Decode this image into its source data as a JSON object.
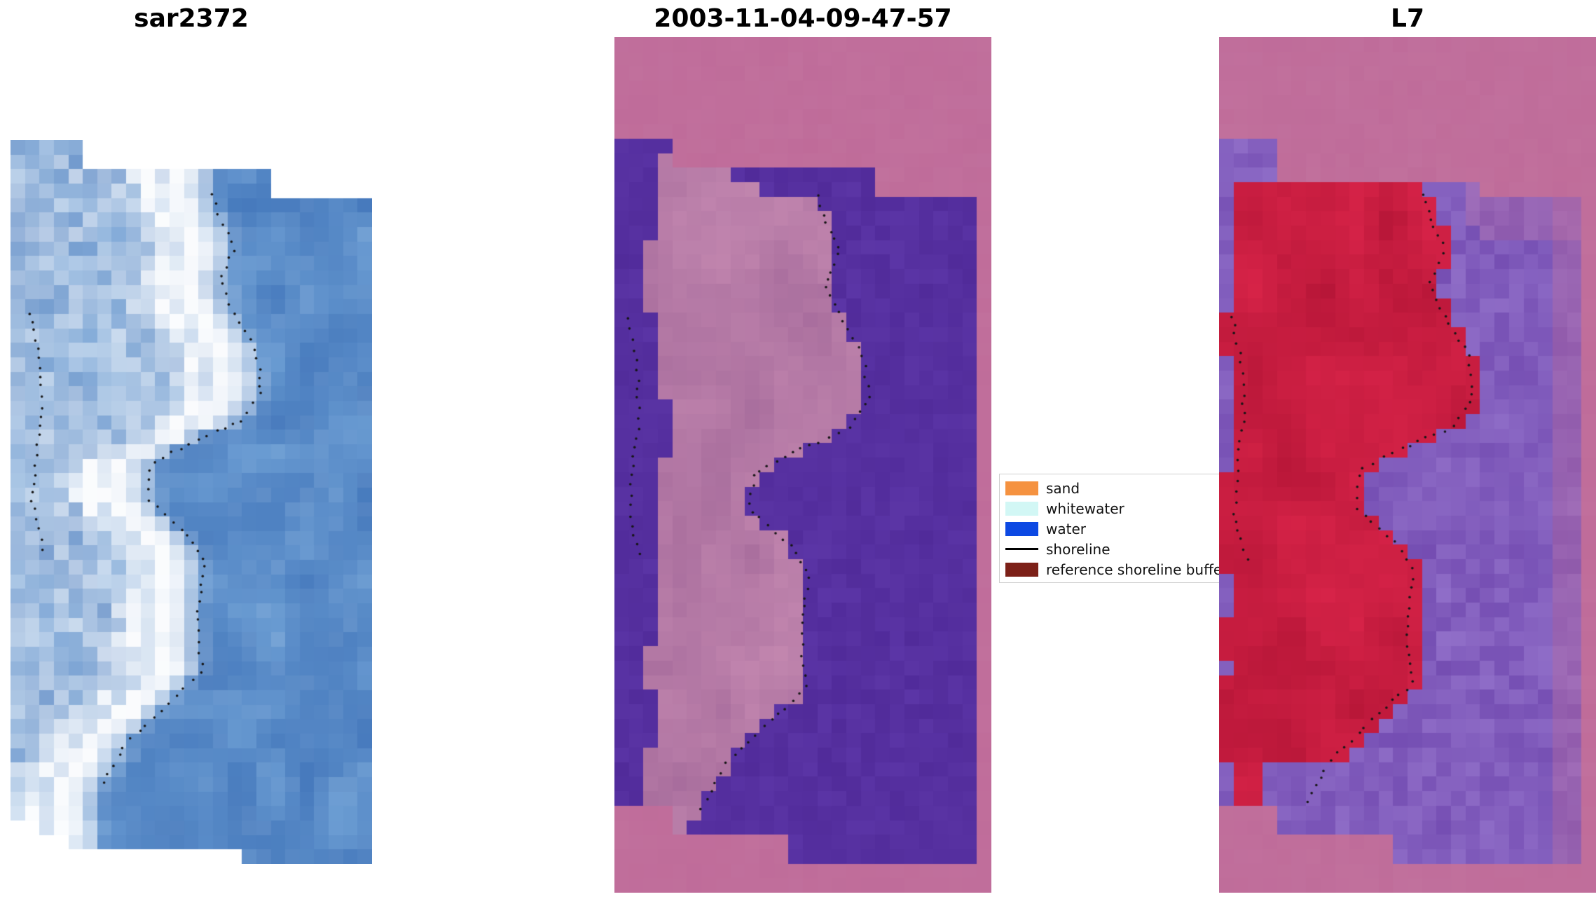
{
  "figure": {
    "background": "#ffffff"
  },
  "panels": [
    {
      "title": "sar2372",
      "kind": "sar",
      "seed": 101,
      "palette": {
        "water_dark": "#3b6fb6",
        "water_light": "#74a5d8",
        "bright": "#ffffff"
      }
    },
    {
      "title": "2003-11-04-09-47-57",
      "kind": "class",
      "seed": 202,
      "palette": {
        "background": "#c06e9b",
        "water": "#5630a0",
        "land_dark": "#9e6496",
        "land_light": "#c488b0"
      }
    },
    {
      "title": "L7",
      "kind": "l7",
      "seed": 303,
      "palette": {
        "background": "#c06e9b",
        "red_dark": "#a81030",
        "red_light": "#d92449",
        "water_dark": "#6a41aa",
        "water_light": "#9a7ad0"
      }
    }
  ],
  "legend": {
    "items": [
      {
        "label": "sand",
        "color": "#f59240",
        "handle": "patch"
      },
      {
        "label": "whitewater",
        "color": "#d2f7f5",
        "handle": "patch"
      },
      {
        "label": "water",
        "color": "#0c49e3",
        "handle": "patch"
      },
      {
        "label": "shoreline",
        "color": "#000000",
        "handle": "line"
      },
      {
        "label": "reference shoreline buffer",
        "color": "#7c2018",
        "handle": "patch"
      }
    ]
  },
  "chart_data": {
    "type": "heatmap",
    "panels": [
      {
        "title": "sar2372",
        "description": "SAR backscatter image: blue water with bright white whitewater/beach band along a wavy shoreline, dotted shoreline overlay"
      },
      {
        "title": "2003-11-04-09-47-57",
        "description": "Classified scene: dark purple water mask surrounding a pink land/buffer strip on mauve background, dotted shoreline overlay"
      },
      {
        "title": "L7",
        "description": "Landsat 7 scene: red reference shoreline buffer band over land, noisy purple water, mauve background, dotted shoreline overlay"
      }
    ],
    "shoreline_trace_normalized": {
      "main": [
        [
          0,
          0.54
        ],
        [
          0.04,
          0.56
        ],
        [
          0.09,
          0.6
        ],
        [
          0.145,
          0.56
        ],
        [
          0.2,
          0.6
        ],
        [
          0.26,
          0.66
        ],
        [
          0.33,
          0.675
        ],
        [
          0.38,
          0.62
        ],
        [
          0.41,
          0.5
        ],
        [
          0.45,
          0.37
        ],
        [
          0.51,
          0.36
        ],
        [
          0.57,
          0.47
        ],
        [
          0.62,
          0.52
        ],
        [
          0.68,
          0.5
        ],
        [
          0.75,
          0.5
        ],
        [
          0.8,
          0.51
        ],
        [
          0.85,
          0.42
        ],
        [
          0.92,
          0.3
        ],
        [
          1,
          0.225
        ]
      ],
      "left": [
        [
          0.2,
          0.035
        ],
        [
          0.28,
          0.06
        ],
        [
          0.36,
          0.065
        ],
        [
          0.44,
          0.05
        ],
        [
          0.52,
          0.04
        ],
        [
          0.6,
          0.075
        ]
      ]
    }
  }
}
